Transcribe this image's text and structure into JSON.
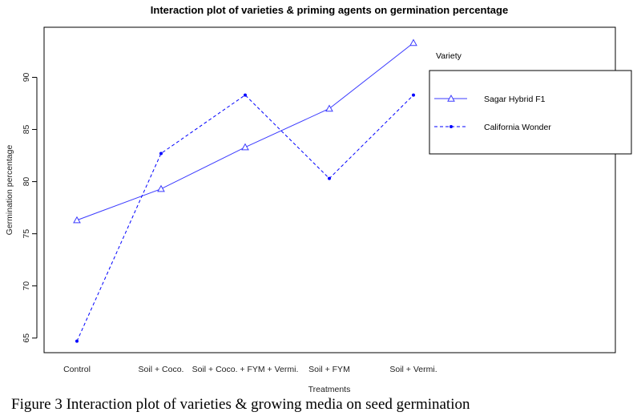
{
  "chart_data": {
    "type": "line",
    "title": "Interaction plot of varieties & priming agents on germination percentage",
    "xlabel": "Treatments",
    "ylabel": "Germination percentage",
    "categories": [
      "Control",
      "Soil + Coco.",
      "Soil + Coco. + FYM + Vermi.",
      "Soil + FYM",
      "Soil + Vermi."
    ],
    "yticks": [
      65,
      70,
      75,
      80,
      85,
      90
    ],
    "ylim": [
      63.6,
      94.8
    ],
    "legend_title": "Variety",
    "legend_position": "top-right",
    "series": [
      {
        "name": "Sagar Hybrid F1",
        "values": [
          76.3,
          79.3,
          83.3,
          87.0,
          93.3
        ],
        "line_style": "solid",
        "marker": "open-triangle",
        "color": "#3b3bff"
      },
      {
        "name": "California Wonder",
        "values": [
          64.7,
          82.7,
          88.3,
          80.3,
          88.3
        ],
        "line_style": "dashed",
        "marker": "filled-dot",
        "color": "#0000ff"
      }
    ]
  },
  "caption": "Figure 3 Interaction plot of varieties & growing media on seed germination"
}
